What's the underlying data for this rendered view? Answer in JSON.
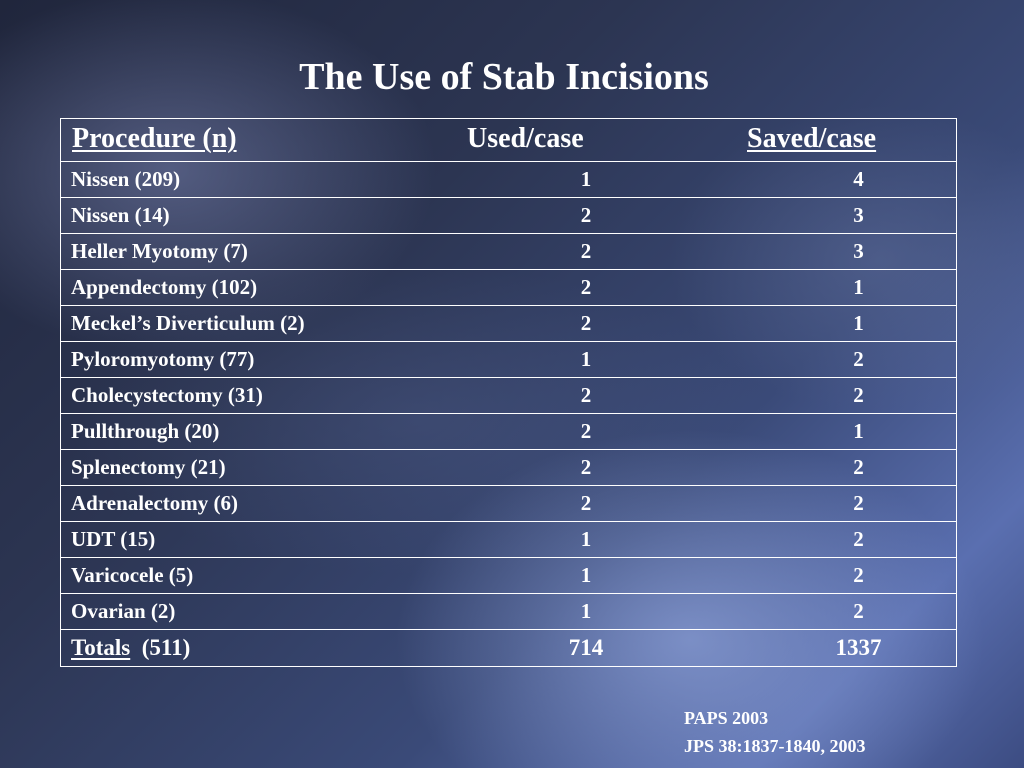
{
  "title": "The Use of Stab Incisions",
  "table": {
    "headers": {
      "procedure": "Procedure (n)",
      "used": "Used/case",
      "saved": "Saved/case"
    },
    "rows": [
      {
        "procedure": "Nissen (209)",
        "used": "1",
        "saved": "4"
      },
      {
        "procedure": "Nissen (14)",
        "used": "2",
        "saved": "3"
      },
      {
        "procedure": "Heller Myotomy (7)",
        "used": "2",
        "saved": "3"
      },
      {
        "procedure": "Appendectomy (102)",
        "used": "2",
        "saved": "1"
      },
      {
        "procedure": "Meckel’s Diverticulum (2)",
        "used": "2",
        "saved": "1"
      },
      {
        "procedure": "Pyloromyotomy (77)",
        "used": "1",
        "saved": "2"
      },
      {
        "procedure": "Cholecystectomy (31)",
        "used": "2",
        "saved": "2"
      },
      {
        "procedure": "Pullthrough (20)",
        "used": "2",
        "saved": "1"
      },
      {
        "procedure": "Splenectomy (21)",
        "used": "2",
        "saved": "2"
      },
      {
        "procedure": "Adrenalectomy (6)",
        "used": "2",
        "saved": "2"
      },
      {
        "procedure": "UDT (15)",
        "used": "1",
        "saved": "2"
      },
      {
        "procedure": "Varicocele (5)",
        "used": "1",
        "saved": "2"
      },
      {
        "procedure": "Ovarian (2)",
        "used": "1",
        "saved": "2"
      }
    ],
    "totals": {
      "label": "Totals",
      "n": "(511)",
      "used": "714",
      "saved": "1337"
    }
  },
  "citation": {
    "line1": "PAPS 2003",
    "line2": "JPS 38:1837-1840, 2003"
  }
}
